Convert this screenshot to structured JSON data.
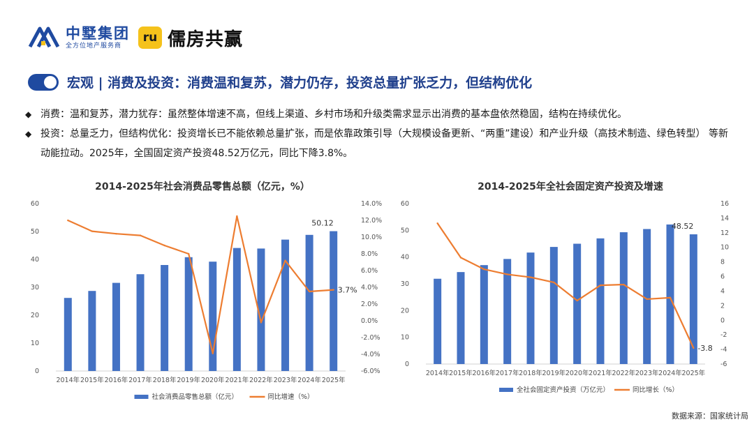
{
  "header": {
    "brand_name": "中墅集团",
    "brand_sub": "全方位地产服务商",
    "partner_badge": "ru",
    "partner_name": "儒房共赢"
  },
  "slide": {
    "title": "宏观 | 消费及投资：消费温和复苏，潜力仍存，投资总量扩张乏力，但结构优化",
    "bullet_mark": "◆",
    "bullets": [
      "消费：温和复苏，潜力犹存：虽然整体增速不高，但线上渠道、乡村市场和升级类需求显示出消费的基本盘依然稳固，结构在持续优化。",
      "投资：总量乏力，但结构优化：投资增长已不能依赖总量扩张，而是依靠政策引导（大规模设备更新、“两重”建设）和产业升级（高技术制造、绿色转型） 等新动能拉动。2025年，全国固定资产投资48.52万亿元，同比下降3.8%。"
    ]
  },
  "colors": {
    "bar": "#4472c4",
    "line": "#ed7d31",
    "accent": "#1f4aa0",
    "badge": "#f5c21b"
  },
  "chart_data": [
    {
      "type": "bar",
      "title": "2014-2025年社会消费品零售总额（亿元，%）",
      "categories": [
        "2014年",
        "2015年",
        "2016年",
        "2017年",
        "2018年",
        "2019年",
        "2020年",
        "2021年",
        "2022年",
        "2023年",
        "2024年",
        "2025年"
      ],
      "series": [
        {
          "name": "社会消费品零售总额（亿元）",
          "kind": "bar",
          "axis": "left",
          "values": [
            26.2,
            28.7,
            31.6,
            34.7,
            38.0,
            40.8,
            39.2,
            44.1,
            43.9,
            47.1,
            48.8,
            50.12
          ]
        },
        {
          "name": "同比增速（%）",
          "kind": "line",
          "axis": "right",
          "values": [
            12.0,
            10.7,
            10.4,
            10.2,
            9.0,
            8.0,
            -3.9,
            12.5,
            -0.2,
            7.2,
            3.5,
            3.7
          ]
        }
      ],
      "left_axis": {
        "min": 0,
        "max": 60,
        "step": 10,
        "ticks": [
          "0",
          "10",
          "20",
          "30",
          "40",
          "50",
          "60"
        ]
      },
      "right_axis": {
        "min": -6,
        "max": 14,
        "step": 2,
        "ticks": [
          "-6.0%",
          "-4.0%",
          "-2.0%",
          "0.0%",
          "2.0%",
          "4.0%",
          "6.0%",
          "8.0%",
          "10.0%",
          "12.0%",
          "14.0%"
        ]
      },
      "labels": {
        "bar_last": "50.12",
        "line_last": "3.7%"
      },
      "legend_position": "bottom-center"
    },
    {
      "type": "bar",
      "title": "2014-2025年全社会固定资产投资及增速",
      "categories": [
        "2014年",
        "2015年",
        "2016年",
        "2017年",
        "2018年",
        "2019年",
        "2020年",
        "2021年",
        "2022年",
        "2023年",
        "2024年",
        "2025年"
      ],
      "series": [
        {
          "name": "全社会固定资产投资（万亿元）",
          "kind": "bar",
          "axis": "left",
          "values": [
            31.9,
            34.4,
            37.0,
            39.3,
            41.7,
            43.8,
            45.0,
            47.0,
            49.3,
            50.5,
            52.2,
            48.52
          ]
        },
        {
          "name": "同比增长（%）",
          "kind": "line",
          "axis": "right",
          "values": [
            13.3,
            8.6,
            7.0,
            6.3,
            5.9,
            5.2,
            2.7,
            4.8,
            4.9,
            2.9,
            3.1,
            -3.8
          ]
        }
      ],
      "left_axis": {
        "min": 0,
        "max": 60,
        "step": 10,
        "ticks": [
          "0",
          "10",
          "20",
          "30",
          "40",
          "50",
          "60"
        ]
      },
      "right_axis": {
        "min": -6,
        "max": 16,
        "step": 2,
        "ticks": [
          "-6",
          "-4",
          "-2",
          "0",
          "2",
          "4",
          "6",
          "8",
          "10",
          "12",
          "14",
          "16"
        ]
      },
      "labels": {
        "bar_last": "48.52",
        "line_last": "-3.8"
      },
      "legend_position": "bottom-center"
    }
  ],
  "footer": {
    "source": "数据来源：国家统计局"
  }
}
